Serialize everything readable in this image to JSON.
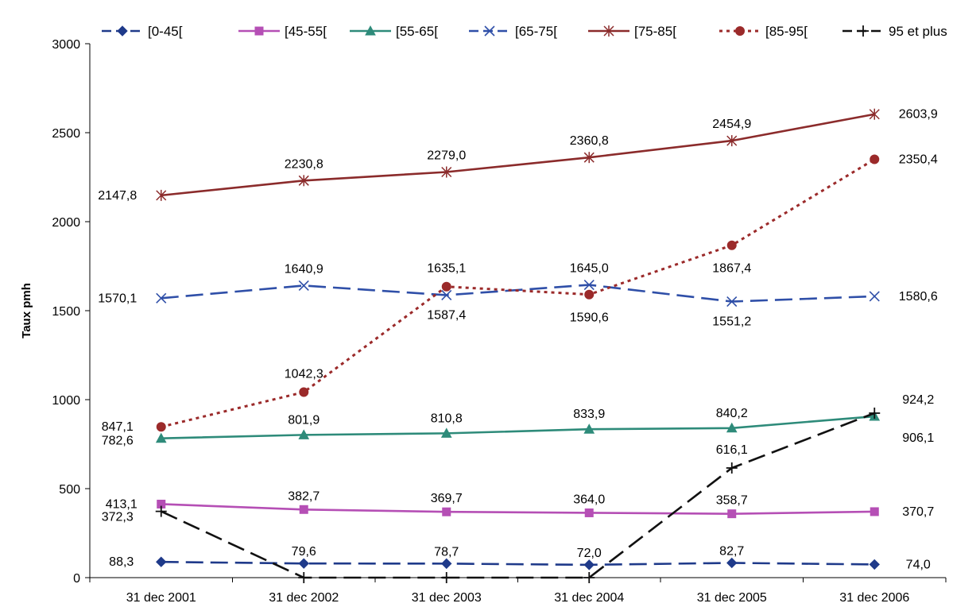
{
  "chart_data": {
    "type": "line",
    "ylabel": "Taux pmh",
    "xlabel": "",
    "title": "",
    "ylim": [
      0,
      3000
    ],
    "yticks": [
      0,
      500,
      1000,
      1500,
      2000,
      2500,
      3000
    ],
    "categories": [
      "31 dec 2001",
      "31 dec 2002",
      "31 dec 2003",
      "31 dec 2004",
      "31 dec 2005",
      "31 dec 2006"
    ],
    "grid": false,
    "legend_position": "top",
    "series": [
      {
        "name": "[0-45[",
        "values": [
          88.3,
          79.6,
          78.7,
          72.0,
          82.7,
          74.0
        ],
        "labels": [
          "88,3",
          "79,6",
          "78,7",
          "72,0",
          "82,7",
          "74,0"
        ],
        "color": "#1f3a8a",
        "dash": "long-dash",
        "marker": "diamond"
      },
      {
        "name": "[45-55[",
        "values": [
          413.1,
          382.7,
          369.7,
          364.0,
          358.7,
          370.7
        ],
        "labels": [
          "413,1",
          "382,7",
          "369,7",
          "364,0",
          "358,7",
          "370,7"
        ],
        "color": "#b54fb5",
        "dash": "solid",
        "marker": "square"
      },
      {
        "name": "[55-65[",
        "values": [
          782.6,
          801.9,
          810.8,
          833.9,
          840.2,
          906.1
        ],
        "labels": [
          "782,6",
          "801,9",
          "810,8",
          "833,9",
          "840,2",
          "906,1"
        ],
        "color": "#2e8b7a",
        "dash": "solid",
        "marker": "triangle"
      },
      {
        "name": "[65-75[",
        "values": [
          1570.1,
          1640.9,
          1587.4,
          1645.0,
          1551.2,
          1580.6
        ],
        "labels": [
          "1570,1",
          "1640,9",
          "1587,4",
          "1645,0",
          "1551,2",
          "1580,6"
        ],
        "color": "#2f4fa8",
        "dash": "long-dash",
        "marker": "x"
      },
      {
        "name": "[75-85[",
        "values": [
          2147.8,
          2230.8,
          2279.0,
          2360.8,
          2454.9,
          2603.9
        ],
        "labels": [
          "2147,8",
          "2230,8",
          "2279,0",
          "2360,8",
          "2454,9",
          "2603,9"
        ],
        "color": "#8b2b2b",
        "dash": "solid",
        "marker": "star"
      },
      {
        "name": "[85-95[",
        "values": [
          847.1,
          1042.3,
          1635.1,
          1590.6,
          1867.4,
          2350.4
        ],
        "labels": [
          "847,1",
          "1042,3",
          "1635,1",
          "1590,6",
          "1867,4",
          "2350,4"
        ],
        "color": "#9b2a2a",
        "dash": "dot",
        "marker": "circle"
      },
      {
        "name": "95 et plus",
        "values": [
          372.3,
          0,
          0,
          0,
          616.1,
          924.2
        ],
        "labels": [
          "372,3",
          "",
          "",
          "",
          "616,1",
          "924,2"
        ],
        "color": "#111111",
        "dash": "long-dash",
        "marker": "plus"
      }
    ]
  }
}
